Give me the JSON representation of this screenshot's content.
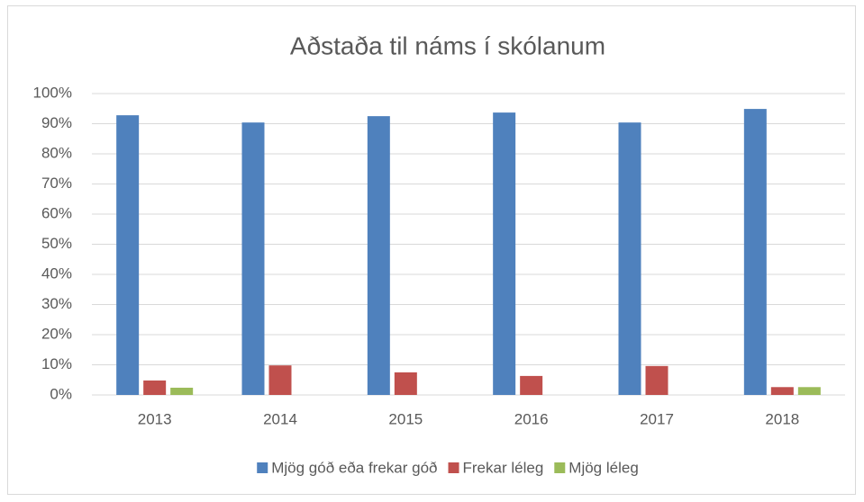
{
  "chart_data": {
    "type": "bar",
    "title": "Aðstaða til náms í skólanum",
    "categories": [
      "2013",
      "2014",
      "2015",
      "2016",
      "2017",
      "2018"
    ],
    "series": [
      {
        "name": "Mjög góð eða frekar góð",
        "color": "#4f81bd",
        "values": [
          92.8,
          90.4,
          92.5,
          93.7,
          90.4,
          94.9
        ]
      },
      {
        "name": "Frekar léleg",
        "color": "#c0504d",
        "values": [
          4.8,
          9.8,
          7.5,
          6.3,
          9.6,
          2.6
        ]
      },
      {
        "name": "Mjög léleg",
        "color": "#9bbb59",
        "values": [
          2.4,
          0,
          0,
          0,
          0,
          2.6
        ]
      }
    ],
    "ylim": [
      0,
      100
    ],
    "yticks": [
      {
        "value": 0,
        "label": "0%"
      },
      {
        "value": 10,
        "label": "10%"
      },
      {
        "value": 20,
        "label": "20%"
      },
      {
        "value": 30,
        "label": "30%"
      },
      {
        "value": 40,
        "label": "40%"
      },
      {
        "value": 50,
        "label": "50%"
      },
      {
        "value": 60,
        "label": "60%"
      },
      {
        "value": 70,
        "label": "70%"
      },
      {
        "value": 80,
        "label": "80%"
      },
      {
        "value": 90,
        "label": "90%"
      },
      {
        "value": 100,
        "label": "100%"
      }
    ],
    "grid": true,
    "legend": "bottom"
  }
}
